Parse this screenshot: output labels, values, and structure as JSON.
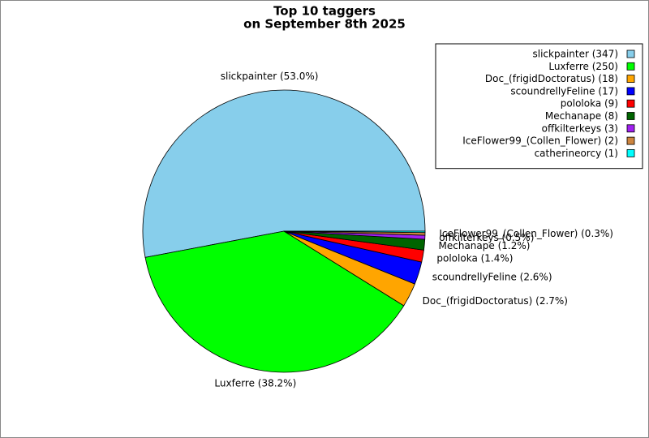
{
  "chart_data": {
    "type": "pie",
    "title": [
      "Top 10 taggers",
      "on September 8th 2025"
    ],
    "categories": [
      "slickpainter",
      "Luxferre",
      "Doc_(frigidDoctoratus)",
      "scoundrellyFeline",
      "pololoka",
      "Mechanape",
      "offkilterkeys",
      "IceFlower99_(Collen_Flower)",
      "catherineorcy"
    ],
    "values": [
      347,
      250,
      18,
      17,
      9,
      8,
      3,
      2,
      1
    ],
    "legend_labels": [
      "slickpainter (347)",
      "Luxferre (250)",
      "Doc_(frigidDoctoratus) (18)",
      "scoundrellyFeline (17)",
      "pololoka (9)",
      "Mechanape (8)",
      "offkilterkeys (3)",
      "IceFlower99_(Collen_Flower) (2)",
      "catherineorcy (1)"
    ],
    "slice_labels": [
      "slickpainter (53.0%)",
      "Luxferre (38.2%)",
      "Doc_(frigidDoctoratus) (2.7%)",
      "scoundrellyFeline (2.6%)",
      "pololoka (1.4%)",
      "Mechanape (1.2%)",
      "offkilterkeys (0.5%)",
      "IceFlower99_(Collen_Flower) (0.3%)",
      null
    ],
    "colors": [
      "#87ceeb",
      "#00ff00",
      "#ffa500",
      "#0000ff",
      "#ff0000",
      "#006400",
      "#a020f0",
      "#cd853f",
      "#00ffff"
    ],
    "legend": "upper right"
  }
}
